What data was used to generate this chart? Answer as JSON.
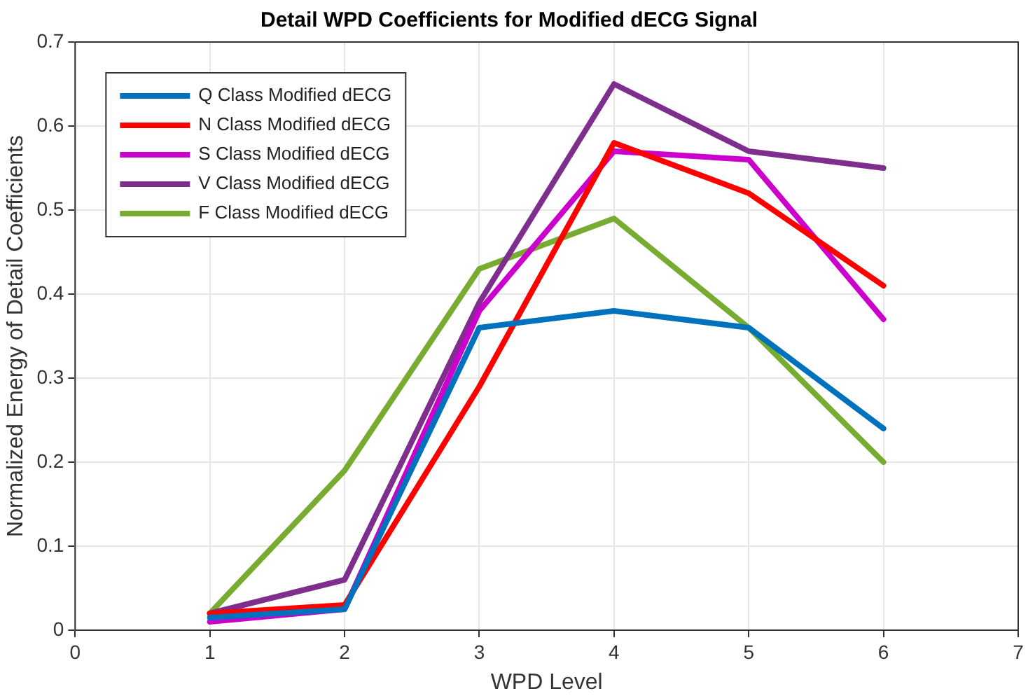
{
  "chart_data": {
    "type": "line",
    "title": "Detail WPD Coefficients for Modified dECG Signal",
    "xlabel": "WPD Level",
    "ylabel": "Normalized Energy of Detail Coefficients",
    "x": [
      1,
      2,
      3,
      4,
      5,
      6
    ],
    "series": [
      {
        "name": "Q Class Modified dECG",
        "color": "#0072bd",
        "values": [
          0.015,
          0.025,
          0.36,
          0.38,
          0.36,
          0.24
        ]
      },
      {
        "name": "N Class Modified dECG",
        "color": "#ff0000",
        "values": [
          0.02,
          0.03,
          0.29,
          0.58,
          0.52,
          0.41
        ]
      },
      {
        "name": "S Class Modified dECG",
        "color": "#cc00cc",
        "values": [
          0.01,
          0.025,
          0.38,
          0.57,
          0.56,
          0.37
        ]
      },
      {
        "name": "V Class Modified dECG",
        "color": "#7e2f8e",
        "values": [
          0.02,
          0.06,
          0.39,
          0.65,
          0.57,
          0.55
        ]
      },
      {
        "name": "F Class Modified dECG",
        "color": "#77ac30",
        "values": [
          0.02,
          0.19,
          0.43,
          0.49,
          0.36,
          0.2
        ]
      }
    ],
    "xlim": [
      0,
      7
    ],
    "xticks": [
      0,
      1,
      2,
      3,
      4,
      5,
      6,
      7
    ],
    "ylim": [
      0,
      0.7
    ],
    "yticks": [
      0,
      0.1,
      0.2,
      0.3,
      0.4,
      0.5,
      0.6,
      0.7
    ],
    "grid": true,
    "legend": "top left",
    "marker": "none",
    "line_style": "solid"
  }
}
